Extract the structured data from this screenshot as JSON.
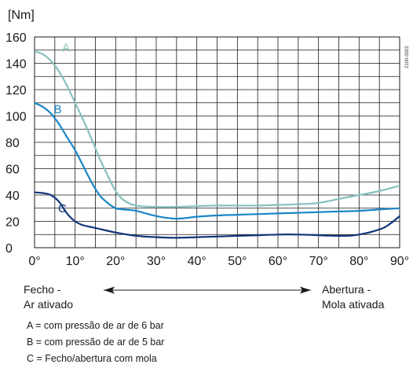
{
  "chart_data": {
    "type": "line",
    "ylabel": "[Nm]",
    "xlim": [
      0,
      90
    ],
    "ylim": [
      0,
      160
    ],
    "x_ticks": [
      0,
      10,
      20,
      30,
      40,
      50,
      60,
      70,
      80,
      90
    ],
    "x_tick_labels": [
      "0°",
      "10°",
      "20°",
      "30°",
      "40°",
      "50°",
      "60°",
      "70°",
      "80°",
      "90°"
    ],
    "y_ticks": [
      0,
      20,
      40,
      60,
      80,
      100,
      120,
      140,
      160
    ],
    "y_tick_labels": [
      "0",
      "20",
      "40",
      "60",
      "80",
      "100",
      "120",
      "140",
      "160"
    ],
    "grid": true,
    "doc_number": "2100-0002",
    "series": [
      {
        "name": "A",
        "color": "#86c1bd",
        "x": [
          0,
          2,
          4,
          6,
          8,
          10,
          12,
          14,
          16,
          18,
          20,
          22,
          25,
          30,
          35,
          40,
          45,
          50,
          55,
          60,
          65,
          70,
          75,
          80,
          85,
          90
        ],
        "y": [
          149,
          147,
          142,
          134,
          123,
          110,
          97,
          83,
          68,
          55,
          43,
          36,
          32,
          31,
          31,
          31.5,
          32,
          32,
          32,
          32.5,
          33,
          34,
          37,
          40,
          43,
          47
        ]
      },
      {
        "name": "B",
        "color": "#1a86c6",
        "x": [
          0,
          2,
          4,
          6,
          8,
          10,
          12,
          14,
          16,
          18,
          20,
          22,
          25,
          30,
          35,
          40,
          45,
          50,
          55,
          60,
          65,
          70,
          75,
          80,
          85,
          90
        ],
        "y": [
          110,
          107,
          102,
          94,
          84,
          74,
          62,
          50,
          40,
          34,
          30,
          29,
          28,
          24,
          22,
          23.5,
          24.5,
          25,
          25.5,
          26,
          26.5,
          27,
          27.5,
          28,
          29,
          30
        ]
      },
      {
        "name": "C",
        "color": "#12357a",
        "x": [
          0,
          2,
          4,
          6,
          8,
          10,
          12,
          15,
          20,
          25,
          30,
          35,
          40,
          45,
          50,
          55,
          60,
          65,
          70,
          72,
          75,
          78,
          80,
          83,
          86,
          88,
          90
        ],
        "y": [
          42,
          41.5,
          40,
          35,
          26,
          20,
          17,
          15,
          11.5,
          9,
          8,
          7.5,
          8,
          8.5,
          9,
          9.5,
          10,
          10,
          9.5,
          9.2,
          9,
          9.2,
          10,
          12,
          15,
          19,
          24
        ]
      }
    ],
    "annotations": {
      "left": [
        "Fecho -",
        "Ar ativado"
      ],
      "right": [
        "Abertura -",
        "Mola ativada"
      ]
    },
    "legend": [
      "A = com pressão de ar de 6 bar",
      "B = com pressão de ar de 5 bar",
      "C = Fecho/abertura com mola"
    ]
  }
}
